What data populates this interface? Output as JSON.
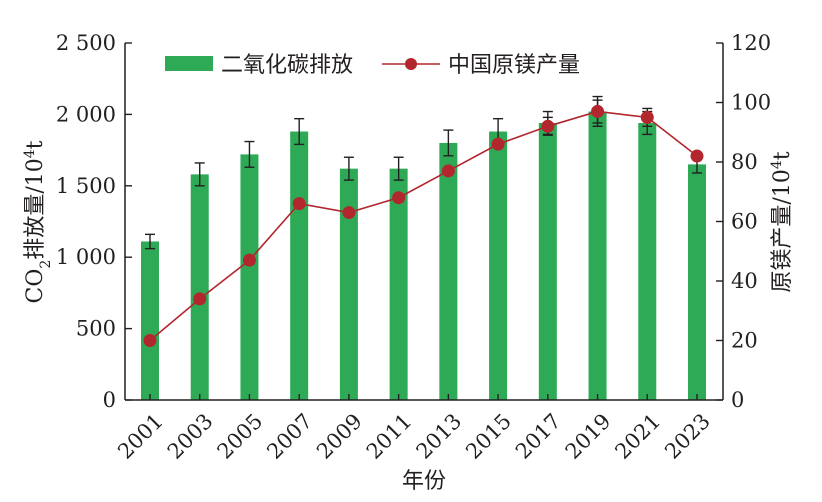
{
  "chart_data": {
    "type": "bar+line",
    "categories": [
      "2001",
      "2003",
      "2005",
      "2007",
      "2009",
      "2011",
      "2013",
      "2015",
      "2017",
      "2019",
      "2021",
      "2023"
    ],
    "series": [
      {
        "name": "二氧化碳排放",
        "type": "bar",
        "axis": "left",
        "color": "#2eaa57",
        "values": [
          1110,
          1580,
          1720,
          1880,
          1620,
          1620,
          1800,
          1880,
          1940,
          2020,
          1940,
          1650
        ],
        "error": [
          50,
          80,
          90,
          90,
          80,
          80,
          90,
          90,
          80,
          80,
          80,
          60
        ]
      },
      {
        "name": "中国原镁产量",
        "type": "line",
        "axis": "right",
        "color": "#b2262d",
        "values": [
          20,
          34,
          47,
          66,
          63,
          68,
          77,
          86,
          92,
          97,
          95,
          82
        ],
        "error": [
          0,
          0,
          0,
          0,
          0,
          0,
          0,
          0,
          3,
          5,
          3,
          0
        ]
      }
    ],
    "xlabel": "年份",
    "ylabel_left": {
      "main": "CO",
      "sub": "2",
      "rest": "排放量/10",
      "sup": "4",
      "unit": "t"
    },
    "ylabel_right": {
      "main": "原镁产量/10",
      "sup": "4",
      "unit": "t"
    },
    "ylim_left": [
      0,
      2500
    ],
    "ylim_right": [
      0,
      120
    ],
    "yticks_left": [
      0,
      500,
      1000,
      1500,
      2000,
      2500
    ],
    "yticks_left_labels": [
      "0",
      "500",
      "1 000",
      "1 500",
      "2 000",
      "2 500"
    ],
    "yticks_right": [
      0,
      20,
      40,
      60,
      80,
      100,
      120
    ],
    "yticks_right_labels": [
      "0",
      "20",
      "40",
      "60",
      "80",
      "100",
      "120"
    ],
    "legend_position": "top-left",
    "grid": false
  }
}
